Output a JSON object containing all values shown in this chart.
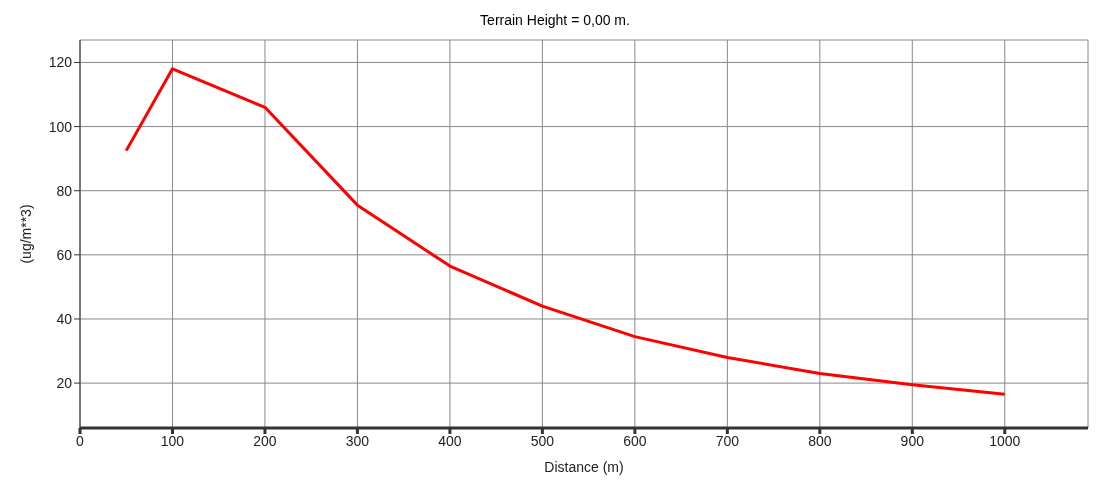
{
  "chart_data": {
    "type": "line",
    "title": "Terrain Height = 0,00 m.",
    "xlabel": "Distance (m)",
    "ylabel": "(ug/m**3)",
    "x": [
      50,
      100,
      200,
      300,
      400,
      500,
      600,
      700,
      800,
      900,
      1000
    ],
    "series": [
      {
        "color": "#ff0000",
        "values": [
          92.5,
          118,
          106,
          75.5,
          56.5,
          44,
          34.5,
          28,
          23,
          19.5,
          16.5
        ]
      }
    ],
    "xlim": [
      0,
      1090
    ],
    "xticks": [
      0,
      100,
      200,
      300,
      400,
      500,
      600,
      700,
      800,
      900,
      1000
    ],
    "ylim": [
      6,
      127
    ],
    "yticks": [
      20,
      40,
      60,
      80,
      100,
      120
    ],
    "grid": true,
    "marker": "none",
    "line_style": "solid"
  }
}
